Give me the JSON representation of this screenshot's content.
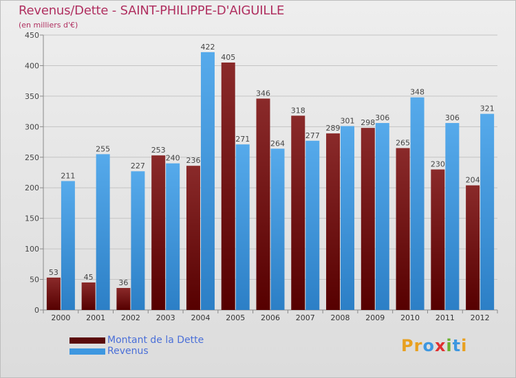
{
  "header": {
    "title": "Revenus/Dette - SAINT-PHILIPPE-D'AIGUILLE",
    "subtitle": "(en milliers d'€)"
  },
  "colors": {
    "dette": "#7a1010",
    "revenus": "#3d97e0",
    "title": "#b03060",
    "legend_text": "#4a6fd8"
  },
  "legend": {
    "items": [
      {
        "label": "Montant de la Dette",
        "color": "#7a1010"
      },
      {
        "label": "Revenus",
        "color": "#3d97e0"
      }
    ]
  },
  "logo": {
    "letters": [
      "P",
      "r",
      "o",
      "x",
      "i",
      "t",
      "i"
    ],
    "colors": [
      "#e8a020",
      "#e8a020",
      "#3d97e0",
      "#e03030",
      "#6ab02e",
      "#3d97e0",
      "#e8a020"
    ]
  },
  "chart_data": {
    "type": "bar",
    "title": "Revenus/Dette - SAINT-PHILIPPE-D'AIGUILLE",
    "subtitle": "(en milliers d'€)",
    "categories": [
      "2000",
      "2001",
      "2002",
      "2003",
      "2004",
      "2005",
      "2006",
      "2007",
      "2008",
      "2009",
      "2010",
      "2011",
      "2012"
    ],
    "series": [
      {
        "name": "Montant de la Dette",
        "values": [
          53,
          45,
          36,
          253,
          236,
          405,
          346,
          318,
          289,
          298,
          265,
          230,
          204
        ]
      },
      {
        "name": "Revenus",
        "values": [
          211,
          255,
          227,
          240,
          422,
          271,
          264,
          277,
          301,
          306,
          348,
          306,
          321
        ]
      }
    ],
    "yticks": [
      0,
      50,
      100,
      150,
      200,
      250,
      300,
      350,
      400,
      450
    ],
    "ylim": [
      0,
      450
    ],
    "grid": true,
    "legend_position": "bottom-left"
  }
}
